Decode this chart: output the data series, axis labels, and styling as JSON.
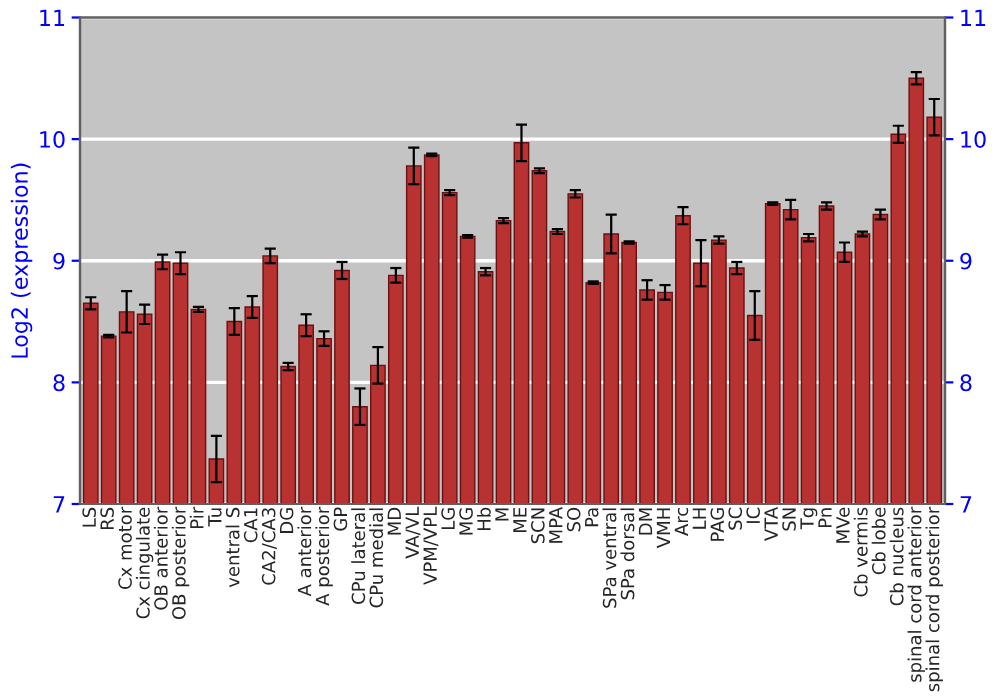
{
  "chart_data": {
    "type": "bar",
    "ylabel": "Log2 (expression)",
    "categories": [
      "LS",
      "RS",
      "Cx motor",
      "Cx cingulate",
      "OB anterior",
      "OB posterior",
      "Pir",
      "Tu",
      "ventral S",
      "CA1",
      "CA2/CA3",
      "DG",
      "A anterior",
      "A posterior",
      "GP",
      "CPu lateral",
      "CPu medial",
      "MD",
      "VA/VL",
      "VPM/VPL",
      "LG",
      "MG",
      "Hb",
      "M",
      "ME",
      "SCN",
      "MPA",
      "SO",
      "Pa",
      "SPa ventral",
      "SPa dorsal",
      "DM",
      "VMH",
      "Arc",
      "LH",
      "PAG",
      "SC",
      "IC",
      "VTA",
      "SN",
      "Tg",
      "Pn",
      "MVe",
      "Cb vermis",
      "Cb lobe",
      "Cb nucleus",
      "spinal cord anterior",
      "spinal cord posterior"
    ],
    "values": [
      8.65,
      8.38,
      8.58,
      8.56,
      8.99,
      8.98,
      8.6,
      7.37,
      8.5,
      8.62,
      9.04,
      8.13,
      8.47,
      8.36,
      8.92,
      7.8,
      8.14,
      8.88,
      9.78,
      9.87,
      9.56,
      9.2,
      8.91,
      9.33,
      9.97,
      9.74,
      9.24,
      9.55,
      8.82,
      9.22,
      9.15,
      8.76,
      8.74,
      9.37,
      8.98,
      9.17,
      8.94,
      8.55,
      9.47,
      9.42,
      9.19,
      9.45,
      9.07,
      9.22,
      9.38,
      10.04,
      10.5,
      10.18
    ],
    "errors": [
      0.05,
      0.01,
      0.17,
      0.08,
      0.06,
      0.09,
      0.02,
      0.19,
      0.11,
      0.09,
      0.06,
      0.03,
      0.09,
      0.06,
      0.07,
      0.15,
      0.15,
      0.06,
      0.15,
      0.01,
      0.02,
      0.01,
      0.03,
      0.02,
      0.15,
      0.02,
      0.02,
      0.03,
      0.01,
      0.16,
      0.01,
      0.08,
      0.06,
      0.07,
      0.19,
      0.03,
      0.05,
      0.2,
      0.01,
      0.08,
      0.03,
      0.03,
      0.08,
      0.02,
      0.04,
      0.07,
      0.05,
      0.15
    ],
    "color": "#b83232",
    "ylim": [
      7,
      11
    ],
    "yticks": [
      7,
      8,
      9,
      10,
      11
    ],
    "y2lim": [
      7,
      11
    ],
    "y2ticks": [
      7,
      8,
      9,
      10,
      11
    ],
    "grid": "y"
  }
}
